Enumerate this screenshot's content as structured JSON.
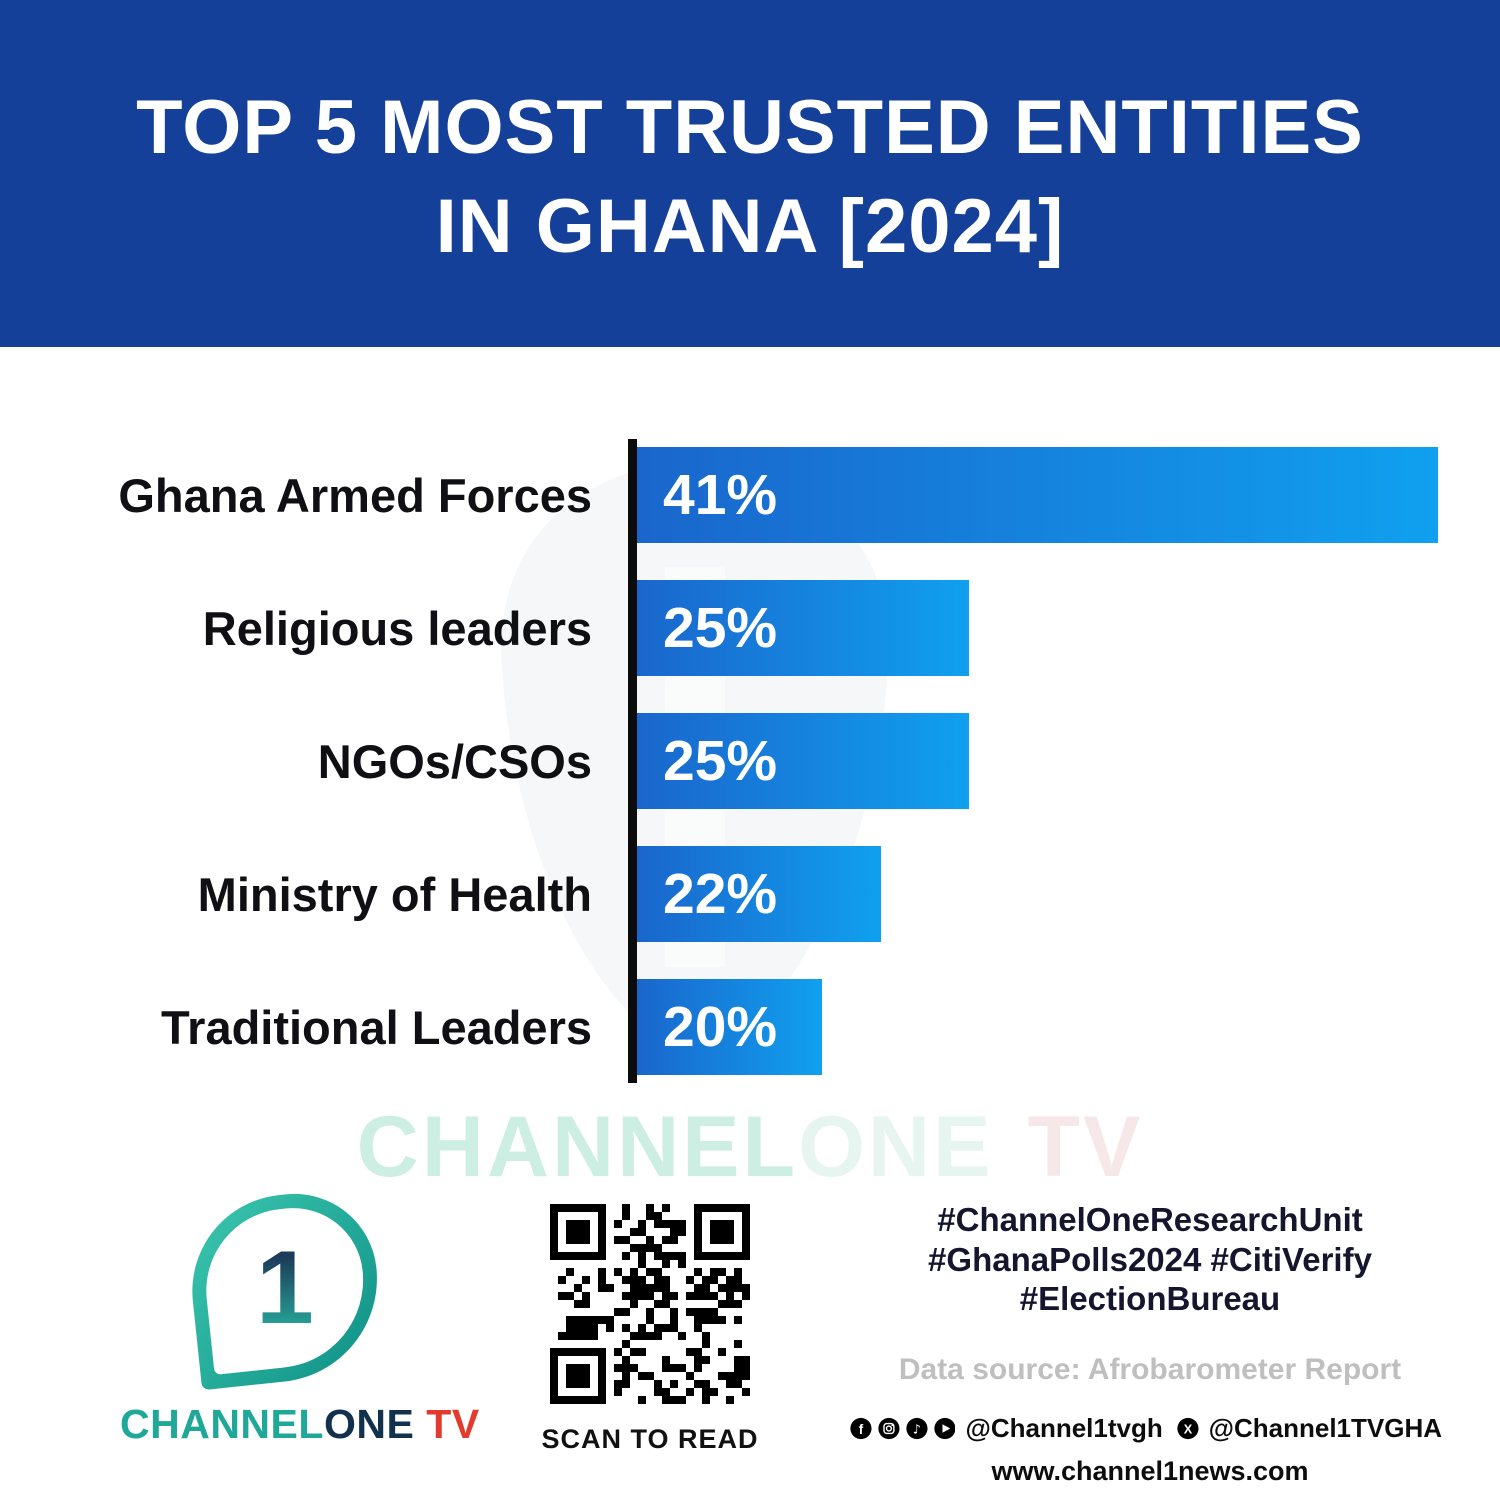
{
  "header": {
    "title_line1": "TOP 5 MOST TRUSTED ENTITIES",
    "title_line2": "IN GHANA [2024]"
  },
  "chart_data": {
    "type": "bar",
    "orientation": "horizontal",
    "title": "Top 5 Most Trusted Entities in Ghana [2024]",
    "categories": [
      "Ghana Armed Forces",
      "Religious leaders",
      "NGOs/CSOs",
      "Ministry of Health",
      "Traditional Leaders"
    ],
    "values": [
      41,
      25,
      25,
      22,
      20
    ],
    "value_labels": [
      "41%",
      "25%",
      "25%",
      "22%",
      "20%"
    ],
    "unit": "%",
    "xlabel": "",
    "ylabel": "",
    "axis_display_min": 13.7,
    "axis_display_max": 41,
    "grid": false,
    "legend": false,
    "bar_color_start": "#1a66cc",
    "bar_color_end": "#10a0ef"
  },
  "watermark": {
    "part1": "CHANNEL",
    "part2": "ONE",
    "part3": "TV"
  },
  "footer": {
    "logo": {
      "numeral": "1",
      "brand_part1": "CHANNEL",
      "brand_part2": "ONE",
      "brand_part3": "TV"
    },
    "qr_caption": "SCAN TO READ",
    "hashtags": [
      "#ChannelOneResearchUnit",
      "#GhanaPolls2024 #CitiVerify",
      "#ElectionBureau"
    ],
    "data_source": "Data source: Afrobarometer Report",
    "social": {
      "handle_primary": "@Channel1tvgh",
      "handle_x": "@Channel1TVGHA"
    },
    "website": "www.channel1news.com"
  },
  "colors": {
    "header_bg": "#15409a",
    "axis": "#0c0c0c",
    "bar_start": "#1a66cc",
    "bar_end": "#10a0ef",
    "tv_red": "#e23a2c",
    "brand_teal": "#1fa797",
    "brand_navy": "#11314d"
  }
}
